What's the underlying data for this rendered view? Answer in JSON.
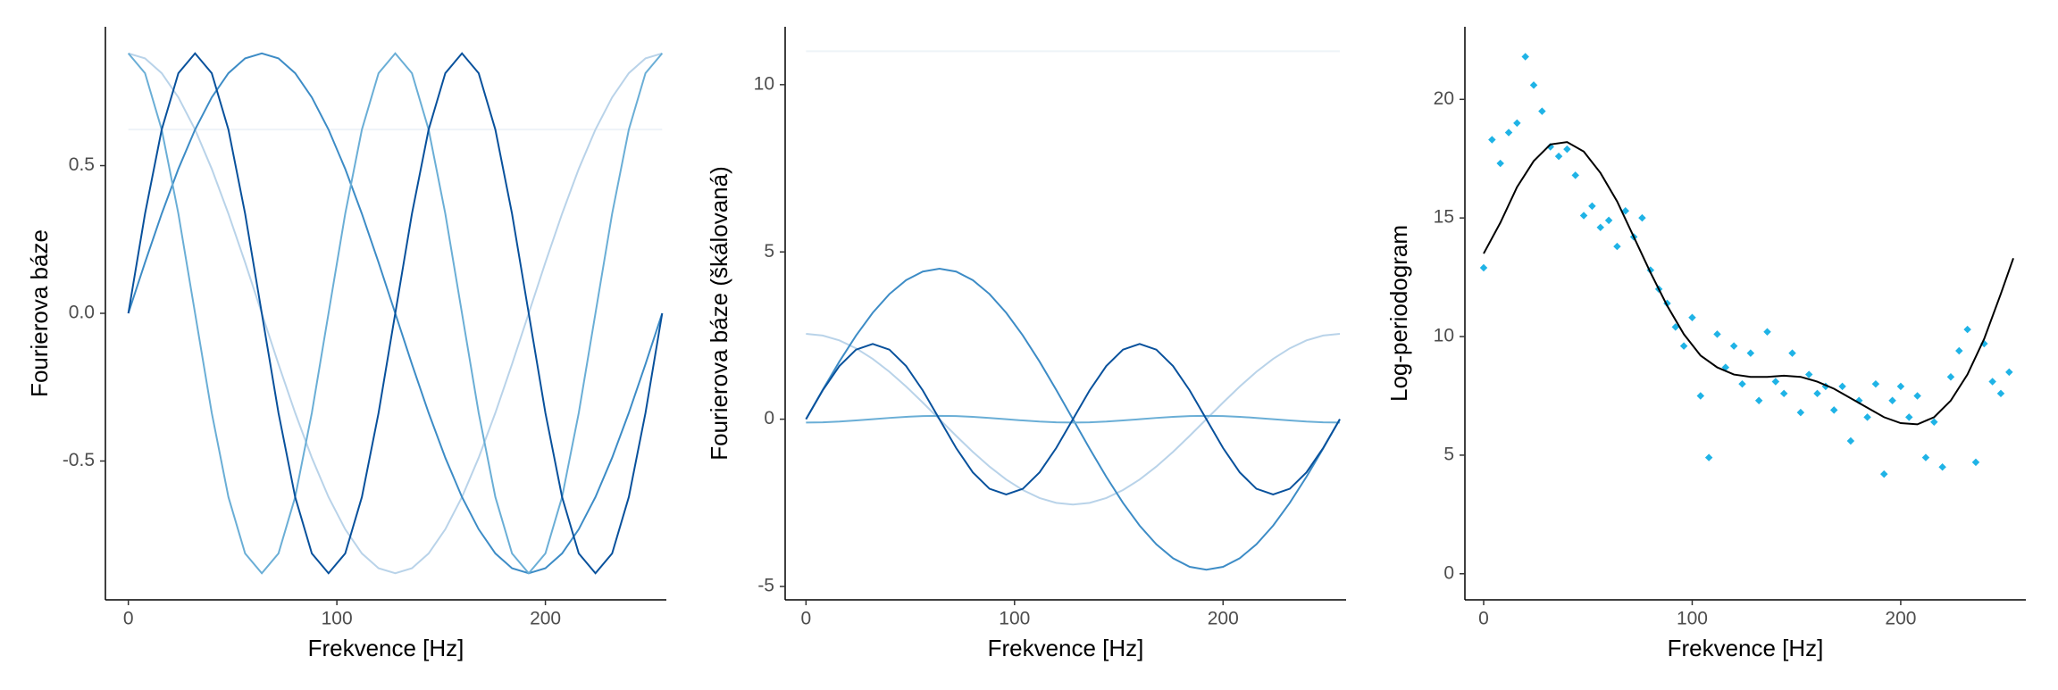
{
  "chart_data": [
    {
      "type": "line",
      "x_label": "Frekvence [Hz]",
      "y_label": "Fourierova báze",
      "x": [
        0,
        8,
        16,
        24,
        32,
        40,
        48,
        56,
        64,
        72,
        80,
        88,
        96,
        104,
        112,
        120,
        128,
        136,
        144,
        152,
        160,
        168,
        176,
        184,
        192,
        200,
        208,
        216,
        224,
        232,
        240,
        248,
        256
      ],
      "xlim": [
        -11,
        258
      ],
      "xticks": [
        0,
        100,
        200
      ],
      "ylim": [
        -0.97,
        0.97
      ],
      "yticks": [
        {
          "value": -0.5,
          "label": "-0.5"
        },
        {
          "value": 0,
          "label": "0.0"
        },
        {
          "value": 0.5,
          "label": "0.5"
        }
      ],
      "series": [
        {
          "color": "#eef3f8",
          "values": [
            0.622,
            0.622,
            0.622,
            0.622,
            0.622,
            0.622,
            0.622,
            0.622,
            0.622,
            0.622,
            0.622,
            0.622,
            0.622,
            0.622,
            0.622,
            0.622,
            0.622,
            0.622,
            0.622,
            0.622,
            0.622,
            0.622,
            0.622,
            0.622,
            0.622,
            0.622,
            0.622,
            0.622,
            0.622,
            0.622,
            0.622,
            0.622,
            0.622
          ]
        },
        {
          "color": "#b9d3e9",
          "values": [
            0.88,
            0.863,
            0.813,
            0.731,
            0.622,
            0.489,
            0.337,
            0.172,
            0,
            -0.172,
            -0.337,
            -0.489,
            -0.622,
            -0.731,
            -0.813,
            -0.863,
            -0.88,
            -0.863,
            -0.813,
            -0.731,
            -0.622,
            -0.489,
            -0.337,
            -0.172,
            0,
            0.172,
            0.337,
            0.489,
            0.622,
            0.731,
            0.813,
            0.863,
            0.88
          ]
        },
        {
          "color": "#3d8cc6",
          "values": [
            0,
            0.172,
            0.337,
            0.489,
            0.622,
            0.731,
            0.813,
            0.863,
            0.88,
            0.863,
            0.813,
            0.731,
            0.622,
            0.489,
            0.337,
            0.172,
            0,
            -0.172,
            -0.337,
            -0.489,
            -0.622,
            -0.731,
            -0.813,
            -0.863,
            -0.88,
            -0.863,
            -0.813,
            -0.731,
            -0.622,
            -0.489,
            -0.337,
            -0.172,
            0
          ]
        },
        {
          "color": "#6aaed6",
          "values": [
            0.88,
            0.813,
            0.622,
            0.337,
            0,
            -0.337,
            -0.622,
            -0.813,
            -0.88,
            -0.813,
            -0.622,
            -0.337,
            0,
            0.337,
            0.622,
            0.813,
            0.88,
            0.813,
            0.622,
            0.337,
            0,
            -0.337,
            -0.622,
            -0.813,
            -0.88,
            -0.813,
            -0.622,
            -0.337,
            0,
            0.337,
            0.622,
            0.813,
            0.88
          ]
        },
        {
          "color": "#08519c",
          "values": [
            0,
            0.337,
            0.622,
            0.813,
            0.88,
            0.813,
            0.622,
            0.337,
            0,
            -0.337,
            -0.622,
            -0.813,
            -0.88,
            -0.813,
            -0.622,
            -0.337,
            0,
            0.337,
            0.622,
            0.813,
            0.88,
            0.813,
            0.622,
            0.337,
            0,
            -0.337,
            -0.622,
            -0.813,
            -0.88,
            -0.813,
            -0.622,
            -0.337,
            0
          ]
        }
      ]
    },
    {
      "type": "line",
      "x_label": "Frekvence [Hz]",
      "y_label": "Fourierova báze (škálovaná)",
      "x": [
        0,
        8,
        16,
        24,
        32,
        40,
        48,
        56,
        64,
        72,
        80,
        88,
        96,
        104,
        112,
        120,
        128,
        136,
        144,
        152,
        160,
        168,
        176,
        184,
        192,
        200,
        208,
        216,
        224,
        232,
        240,
        248,
        256
      ],
      "xlim": [
        -10,
        259
      ],
      "xticks": [
        0,
        100,
        200
      ],
      "ylim": [
        -5.4,
        11.73
      ],
      "yticks": [
        -5,
        0,
        5,
        10
      ],
      "series": [
        {
          "color": "#eef3f8",
          "values": [
            11,
            11,
            11,
            11,
            11,
            11,
            11,
            11,
            11,
            11,
            11,
            11,
            11,
            11,
            11,
            11,
            11,
            11,
            11,
            11,
            11,
            11,
            11,
            11,
            11,
            11,
            11,
            11,
            11,
            11,
            11,
            11,
            11
          ]
        },
        {
          "color": "#b9d3e9",
          "values": [
            2.55,
            2.501,
            2.356,
            2.119,
            1.803,
            1.417,
            0.977,
            0.497,
            0,
            -0.497,
            -0.977,
            -1.417,
            -1.803,
            -2.119,
            -2.356,
            -2.501,
            -2.55,
            -2.501,
            -2.356,
            -2.119,
            -1.803,
            -1.417,
            -0.977,
            -0.497,
            0,
            0.497,
            0.977,
            1.417,
            1.803,
            2.119,
            2.356,
            2.501,
            2.55
          ]
        },
        {
          "color": "#3d8cc6",
          "values": [
            0,
            0.878,
            1.722,
            2.5,
            3.182,
            3.741,
            4.157,
            4.413,
            4.5,
            4.413,
            4.157,
            3.741,
            3.182,
            2.5,
            1.722,
            0.878,
            0,
            -0.878,
            -1.722,
            -2.5,
            -3.182,
            -3.741,
            -4.157,
            -4.413,
            -4.5,
            -4.413,
            -4.157,
            -3.741,
            -3.182,
            -2.5,
            -1.722,
            -0.878,
            0
          ]
        },
        {
          "color": "#6aaed6",
          "values": [
            -0.1,
            -0.092,
            -0.071,
            -0.038,
            0,
            0.038,
            0.071,
            0.092,
            0.1,
            0.092,
            0.071,
            0.038,
            0,
            -0.038,
            -0.071,
            -0.092,
            -0.1,
            -0.092,
            -0.071,
            -0.038,
            0,
            0.038,
            0.071,
            0.092,
            0.1,
            0.092,
            0.071,
            0.038,
            0,
            -0.038,
            -0.071,
            -0.092,
            -0.1
          ]
        },
        {
          "color": "#08519c",
          "values": [
            0,
            0.861,
            1.59,
            2.079,
            2.25,
            2.079,
            1.59,
            0.861,
            0,
            -0.861,
            -1.59,
            -2.079,
            -2.25,
            -2.079,
            -1.59,
            -0.861,
            0,
            0.861,
            1.59,
            2.079,
            2.25,
            2.079,
            1.59,
            0.861,
            0,
            -0.861,
            -1.59,
            -2.079,
            -2.25,
            -2.079,
            -1.59,
            -0.861,
            0
          ]
        }
      ]
    },
    {
      "type": "scatter",
      "x_label": "Frekvence [Hz]",
      "y_label": "Log-periodogram",
      "xlim": [
        -9,
        260
      ],
      "xticks": [
        0,
        100,
        200
      ],
      "ylim": [
        -1.1,
        23.06
      ],
      "yticks": [
        0,
        5,
        10,
        15,
        20
      ],
      "points": {
        "color": "#1fb3e6",
        "x": [
          0,
          4,
          8,
          12,
          16,
          20,
          24,
          28,
          32,
          36,
          40,
          44,
          48,
          52,
          56,
          60,
          64,
          68,
          72,
          76,
          80,
          84,
          88,
          92,
          96,
          100,
          104,
          108,
          112,
          116,
          120,
          124,
          128,
          132,
          136,
          140,
          144,
          148,
          152,
          156,
          160,
          164,
          168,
          172,
          176,
          180,
          184,
          188,
          192,
          196,
          200,
          204,
          208,
          212,
          216,
          220,
          224,
          228,
          232,
          236,
          240,
          244,
          248,
          252
        ],
        "values": [
          12.9,
          18.3,
          17.3,
          18.6,
          19.0,
          21.8,
          20.6,
          19.5,
          18.0,
          17.6,
          17.9,
          16.8,
          15.1,
          15.5,
          14.6,
          14.9,
          13.8,
          15.3,
          14.2,
          15.0,
          12.8,
          12.0,
          11.4,
          10.4,
          9.6,
          10.8,
          7.5,
          4.9,
          10.1,
          8.7,
          9.6,
          8.0,
          9.3,
          7.3,
          10.2,
          8.1,
          7.6,
          9.3,
          6.8,
          8.4,
          7.6,
          7.9,
          6.9,
          7.9,
          5.6,
          7.3,
          6.6,
          8.0,
          4.2,
          7.3,
          7.9,
          6.6,
          7.5,
          4.9,
          6.4,
          4.5,
          8.3,
          9.4,
          10.3,
          4.7,
          9.7,
          8.1,
          7.6,
          8.5
        ]
      },
      "fit": {
        "color": "#000000",
        "x": [
          0,
          8,
          16,
          24,
          32,
          40,
          48,
          56,
          64,
          72,
          80,
          88,
          96,
          104,
          112,
          120,
          128,
          136,
          144,
          152,
          160,
          168,
          176,
          184,
          192,
          200,
          208,
          216,
          224,
          232,
          240,
          248,
          254
        ],
        "values": [
          13.5,
          14.8,
          16.3,
          17.4,
          18.1,
          18.2,
          17.8,
          16.9,
          15.7,
          14.2,
          12.7,
          11.3,
          10.1,
          9.2,
          8.7,
          8.4,
          8.3,
          8.3,
          8.35,
          8.3,
          8.1,
          7.8,
          7.4,
          7.0,
          6.6,
          6.35,
          6.3,
          6.6,
          7.3,
          8.4,
          9.9,
          11.8,
          13.3
        ]
      }
    }
  ]
}
